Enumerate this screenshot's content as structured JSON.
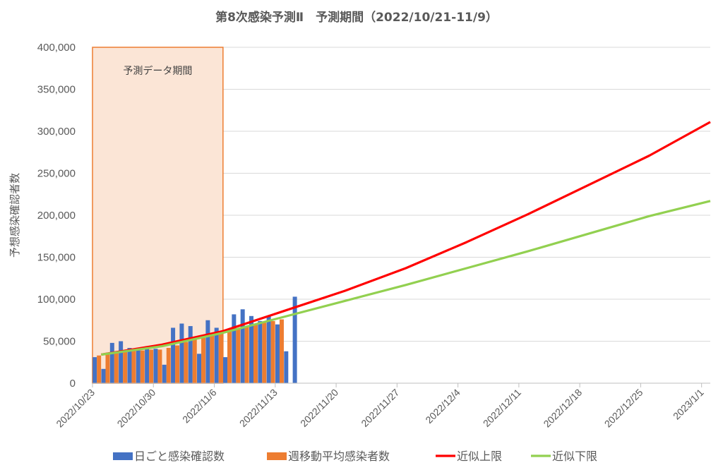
{
  "chart_data": {
    "type": "bar",
    "title": "第8次感染予測Ⅱ　予測期間（2022/10/21-11/9）",
    "ylabel": "予想感染確認者数",
    "xlabel": "",
    "ylim": [
      0,
      400000
    ],
    "y_ticks": [
      "0",
      "50,000",
      "100,000",
      "150,000",
      "200,000",
      "250,000",
      "300,000",
      "350,000",
      "400,000"
    ],
    "x_ticks": [
      "2022/10/23",
      "2022/10/30",
      "2022/11/6",
      "2022/11/13",
      "2022/11/20",
      "2022/11/27",
      "2022/12/4",
      "2022/12/11",
      "2022/12/18",
      "2022/12/25",
      "2023/1/1"
    ],
    "x_range": [
      "2022/10/23",
      "2023/1/2"
    ],
    "grid": true,
    "legend_position": "bottom",
    "annotation": {
      "label": "予測データ期間",
      "start": "2022/10/23",
      "end": "2022/11/7",
      "fill": "#fbe5d6",
      "border": "#ed7d31"
    },
    "series": [
      {
        "name": "日ごと感染確認数",
        "kind": "bar",
        "color": "#4472c4",
        "x": [
          "2022/10/23",
          "2022/10/24",
          "2022/10/25",
          "2022/10/26",
          "2022/10/27",
          "2022/10/28",
          "2022/10/29",
          "2022/10/30",
          "2022/10/31",
          "2022/11/1",
          "2022/11/2",
          "2022/11/3",
          "2022/11/4",
          "2022/11/5",
          "2022/11/6",
          "2022/11/7",
          "2022/11/8",
          "2022/11/9",
          "2022/11/10",
          "2022/11/11",
          "2022/11/12",
          "2022/11/13",
          "2022/11/14",
          "2022/11/15"
        ],
        "values": [
          31000,
          17000,
          48000,
          50000,
          42000,
          39000,
          43000,
          41000,
          22000,
          66000,
          71000,
          68000,
          35000,
          75000,
          66000,
          31000,
          82000,
          88000,
          80000,
          74000,
          80000,
          70000,
          38000,
          103000
        ]
      },
      {
        "name": "週移動平均感染者数",
        "kind": "bar",
        "color": "#ed7d31",
        "x": [
          "2022/10/23",
          "2022/10/24",
          "2022/10/25",
          "2022/10/26",
          "2022/10/27",
          "2022/10/28",
          "2022/10/29",
          "2022/10/30",
          "2022/10/31",
          "2022/11/1",
          "2022/11/2",
          "2022/11/3",
          "2022/11/4",
          "2022/11/5",
          "2022/11/6",
          "2022/11/7",
          "2022/11/8",
          "2022/11/9",
          "2022/11/10",
          "2022/11/11",
          "2022/11/12",
          "2022/11/13"
        ],
        "values": [
          33000,
          34000,
          36000,
          38000,
          39000,
          39000,
          40000,
          40000,
          42000,
          45000,
          49000,
          52000,
          54000,
          58000,
          62000,
          64000,
          64000,
          68000,
          70000,
          72000,
          74000,
          76000
        ]
      },
      {
        "name": "近似上限",
        "kind": "line",
        "color": "#ff0000",
        "x": [
          "2022/10/24",
          "2022/10/31",
          "2022/11/7",
          "2022/11/14",
          "2022/11/21",
          "2022/11/28",
          "2022/12/5",
          "2022/12/12",
          "2022/12/19",
          "2022/12/26",
          "2023/1/2"
        ],
        "values": [
          34000,
          46000,
          62000,
          86000,
          110000,
          137000,
          168000,
          201000,
          236000,
          271000,
          311000
        ]
      },
      {
        "name": "近似下限",
        "kind": "line",
        "color": "#92d050",
        "x": [
          "2022/10/24",
          "2022/10/31",
          "2022/11/7",
          "2022/11/14",
          "2022/11/21",
          "2022/11/28",
          "2022/12/5",
          "2022/12/12",
          "2022/12/19",
          "2022/12/26",
          "2023/1/2"
        ],
        "values": [
          34000,
          44000,
          60000,
          79000,
          98000,
          117000,
          137000,
          157000,
          178000,
          199000,
          217000
        ]
      }
    ]
  }
}
